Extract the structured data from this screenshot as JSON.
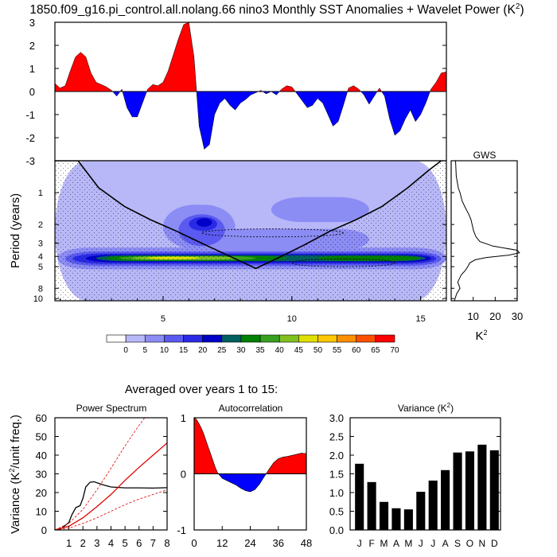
{
  "chart_data": [
    {
      "id": "sst_timeseries",
      "type": "area",
      "title": "1850.f09_g16.pi_control.all.nolang.66 nino3 Monthly SST Anomalies + Wavelet Power (K",
      "title_sup": "2",
      "title_close": ")",
      "xlim": [
        0.8,
        16.0
      ],
      "ylim": [
        -3,
        3
      ],
      "y_ticks": [
        "3",
        "2",
        "1",
        "0",
        "-1",
        "-2",
        "-3"
      ],
      "y_tick_values": [
        3,
        2,
        1,
        0,
        -1,
        -2,
        -3
      ],
      "colors": {
        "positive": "#ff0000",
        "negative": "#0000ff"
      },
      "x": [
        0.8,
        1.0,
        1.2,
        1.4,
        1.6,
        1.8,
        2.0,
        2.2,
        2.4,
        2.6,
        2.8,
        3.0,
        3.2,
        3.4,
        3.6,
        3.8,
        4.0,
        4.2,
        4.4,
        4.6,
        4.8,
        5.0,
        5.2,
        5.4,
        5.6,
        5.8,
        6.0,
        6.2,
        6.4,
        6.6,
        6.8,
        7.0,
        7.2,
        7.4,
        7.6,
        7.8,
        8.0,
        8.2,
        8.4,
        8.6,
        8.8,
        9.0,
        9.2,
        9.4,
        9.6,
        9.8,
        10.0,
        10.2,
        10.4,
        10.6,
        10.8,
        11.0,
        11.2,
        11.4,
        11.6,
        11.8,
        12.0,
        12.2,
        12.4,
        12.6,
        12.8,
        13.0,
        13.2,
        13.4,
        13.6,
        13.8,
        14.0,
        14.2,
        14.4,
        14.6,
        14.8,
        15.0,
        15.2,
        15.4,
        15.6,
        15.8,
        16.0
      ],
      "values": [
        0.35,
        0.15,
        0.25,
        0.9,
        1.5,
        1.7,
        1.5,
        0.8,
        0.4,
        0.3,
        0.2,
        0.05,
        -0.2,
        0.1,
        -0.7,
        -1.1,
        -1.1,
        -0.5,
        0.1,
        0.3,
        0.25,
        0.4,
        0.9,
        1.6,
        2.3,
        2.9,
        3.0,
        1.5,
        -1.5,
        -2.5,
        -2.3,
        -1.0,
        -0.5,
        -0.3,
        -0.6,
        -0.8,
        -0.5,
        -0.35,
        -0.15,
        -0.05,
        0.05,
        -0.1,
        0.0,
        -0.15,
        0.1,
        0.25,
        0.2,
        -0.1,
        -0.4,
        -0.7,
        -0.6,
        -0.3,
        -0.5,
        -1.0,
        -1.5,
        -1.3,
        -0.6,
        0.15,
        0.25,
        0.1,
        -0.15,
        -0.55,
        -0.2,
        0.15,
        -0.2,
        -1.2,
        -1.9,
        -1.7,
        -1.2,
        -0.8,
        -1.3,
        -1.0,
        -0.5,
        0.1,
        0.4,
        0.8,
        0.85
      ]
    },
    {
      "id": "wavelet_power",
      "type": "heatmap",
      "ylabel": "Period (years)",
      "x_ticks": [
        "5",
        "10",
        "15"
      ],
      "x_tick_values": [
        5,
        10,
        15
      ],
      "xlim": [
        0.8,
        16.0
      ],
      "ylim_period": [
        0.5,
        10.5
      ],
      "y_ticks": [
        "1",
        "2",
        "3",
        "4",
        "5",
        "8",
        "10"
      ],
      "y_tick_values": [
        1,
        2,
        3,
        4,
        5,
        8,
        10
      ],
      "significance_contours": [
        {
          "period_level": 2.4,
          "x_range": [
            6.5,
            12.0
          ]
        },
        {
          "period_level": 4.6,
          "x_range": [
            10.0,
            14.0
          ]
        }
      ],
      "cone_of_influence": {
        "x": [
          0.8,
          1.7,
          2.5,
          3.5,
          4.5,
          5.5,
          6.5,
          7.5,
          8.6,
          9.5,
          10.5,
          11.5,
          12.5,
          13.5,
          14.5,
          15.3,
          15.8
        ],
        "period": [
          0.5,
          0.5,
          0.9,
          1.35,
          1.8,
          2.3,
          3.0,
          3.9,
          5.2,
          4.1,
          3.1,
          2.3,
          1.8,
          1.35,
          0.9,
          0.62,
          0.5
        ]
      },
      "colorbar_labels": [
        "0",
        "5",
        "10",
        "15",
        "20",
        "25",
        "30",
        "35",
        "40",
        "45",
        "50",
        "55",
        "60",
        "65",
        "70"
      ],
      "colorbar_colors": [
        "#ffffff",
        "#b8b8f8",
        "#8c8cf5",
        "#5a5af0",
        "#2a2ae6",
        "#0000c8",
        "#006060",
        "#008000",
        "#38a020",
        "#80c020",
        "#e0e000",
        "#ffc800",
        "#ff9000",
        "#ff5000",
        "#ff0000"
      ],
      "contour_levels": [
        {
          "level": 5,
          "color": "#b8b8f8",
          "blobs": [
            [
              0.8,
              16.0,
              0.5,
              10.5
            ]
          ]
        },
        {
          "level": 10,
          "color": "#8c8cf5",
          "blobs": [
            [
              0.9,
              16.0,
              3.3,
              5.3
            ],
            [
              5.0,
              7.8,
              1.3,
              3.4
            ],
            [
              5.5,
              13.0,
              2.2,
              3.5
            ],
            [
              9.2,
              13.0,
              1.1,
              1.9
            ]
          ]
        },
        {
          "level": 15,
          "color": "#5a5af0",
          "blobs": [
            [
              1.2,
              15.8,
              3.6,
              4.9
            ],
            [
              5.6,
              7.4,
              1.6,
              3.2
            ]
          ]
        },
        {
          "level": 20,
          "color": "#2a2ae6",
          "blobs": [
            [
              1.5,
              15.6,
              3.75,
              4.7
            ],
            [
              6.0,
              7.1,
              1.7,
              2.3
            ]
          ]
        },
        {
          "level": 25,
          "color": "#0000c8",
          "blobs": [
            [
              2.0,
              15.4,
              3.85,
              4.55
            ],
            [
              6.3,
              6.9,
              1.75,
              2.1
            ]
          ]
        },
        {
          "level": 30,
          "color": "#006060",
          "blobs": [
            [
              2.4,
              15.2,
              3.9,
              4.45
            ]
          ]
        },
        {
          "level": 35,
          "color": "#008000",
          "blobs": [
            [
              2.8,
              9.8,
              3.95,
              4.4
            ],
            [
              11.0,
              15.0,
              3.95,
              4.4
            ]
          ]
        },
        {
          "level": 40,
          "color": "#38a020",
          "blobs": [
            [
              3.3,
              8.6,
              3.98,
              4.35
            ]
          ]
        },
        {
          "level": 45,
          "color": "#80c020",
          "blobs": [
            [
              3.8,
              7.8,
              4.0,
              4.3
            ]
          ]
        },
        {
          "level": 50,
          "color": "#e0e000",
          "blobs": [
            [
              4.4,
              6.4,
              4.03,
              4.26
            ]
          ]
        }
      ]
    },
    {
      "id": "gws",
      "type": "line",
      "title": "GWS",
      "xlabel": "K",
      "xlabel_sup": "2",
      "xlim": [
        0,
        30
      ],
      "x_ticks": [
        "10",
        "20",
        "30"
      ],
      "x_tick_values": [
        10,
        20,
        30
      ],
      "period": [
        0.5,
        0.7,
        0.9,
        1.0,
        1.2,
        1.4,
        1.6,
        1.8,
        2.0,
        2.3,
        2.6,
        2.9,
        3.2,
        3.5,
        3.7,
        3.9,
        4.1,
        4.3,
        4.6,
        5.0,
        5.4,
        6.0,
        7.0,
        8.0,
        9.0,
        10.5
      ],
      "power": [
        2.0,
        2.3,
        3.2,
        4.0,
        5.0,
        6.5,
        8.0,
        9.0,
        9.5,
        10.2,
        11.2,
        13.0,
        19.0,
        30.0,
        31.0,
        26.0,
        16.0,
        11.0,
        8.5,
        7.5,
        6.5,
        4.5,
        3.0,
        4.0,
        2.5,
        1.5
      ]
    },
    {
      "id": "section_title",
      "type": "table",
      "text": "Averaged over years 1 to 15:"
    },
    {
      "id": "power_spectrum",
      "type": "line",
      "title": "Power Spectrum",
      "ylabel": "Variance (K",
      "ylabel_sup": "2",
      "ylabel_close": "/unit freq.)",
      "xlim": [
        0,
        8
      ],
      "ylim": [
        0,
        60
      ],
      "x_ticks": [
        "1",
        "2",
        "3",
        "4",
        "5",
        "6",
        "7",
        "8"
      ],
      "x_tick_values": [
        1,
        2,
        3,
        4,
        5,
        6,
        7,
        8
      ],
      "y_ticks": [
        "0",
        "10",
        "20",
        "30",
        "40",
        "50",
        "60"
      ],
      "y_tick_values": [
        0,
        10,
        20,
        30,
        40,
        50,
        60
      ],
      "series": [
        {
          "name": "spectrum",
          "color": "#000000",
          "dash": false,
          "x": [
            0.0,
            0.5,
            1.0,
            1.2,
            1.5,
            1.8,
            2.0,
            2.2,
            2.5,
            2.8,
            3.0,
            3.5,
            4.0,
            5.0,
            6.0,
            7.0,
            8.0
          ],
          "y": [
            0.0,
            1.0,
            4.0,
            8.0,
            12.0,
            13.0,
            17.0,
            23.0,
            25.5,
            25.8,
            25.2,
            24.0,
            23.0,
            22.5,
            22.5,
            22.4,
            22.6
          ]
        },
        {
          "name": "red noise",
          "color": "#e00000",
          "dash": false,
          "x": [
            0,
            1,
            2,
            3,
            4,
            5,
            6,
            7,
            8
          ],
          "y": [
            0,
            2.0,
            6.5,
            12.5,
            19.0,
            26.5,
            33.5,
            40.0,
            46.5
          ]
        },
        {
          "name": "upper bound",
          "color": "#e00000",
          "dash": true,
          "x": [
            0,
            1,
            2,
            3,
            4,
            5,
            6,
            7
          ],
          "y": [
            0,
            3.5,
            11.0,
            21.5,
            33.0,
            45.0,
            56.0,
            66.0
          ]
        },
        {
          "name": "lower bound",
          "color": "#e00000",
          "dash": true,
          "x": [
            0,
            1,
            2,
            3,
            4,
            5,
            6,
            7,
            8
          ],
          "y": [
            0,
            1.0,
            3.5,
            6.5,
            10.0,
            13.5,
            16.5,
            19.0,
            21.5
          ]
        }
      ]
    },
    {
      "id": "autocorrelation",
      "type": "area",
      "title": "Autocorrelation",
      "xlim": [
        0,
        48
      ],
      "ylim": [
        -1,
        1
      ],
      "x_ticks": [
        "0",
        "12",
        "24",
        "36",
        "48"
      ],
      "x_tick_values": [
        0,
        12,
        24,
        36,
        48
      ],
      "y_ticks": [
        "1",
        "0",
        "-1"
      ],
      "y_tick_values": [
        1,
        0,
        -1
      ],
      "colors": {
        "positive": "#ff0000",
        "negative": "#0000ff"
      },
      "x": [
        0,
        1,
        2,
        3,
        4,
        5,
        6,
        7,
        8,
        9,
        10,
        12,
        14,
        16,
        18,
        20,
        22,
        24,
        26,
        28,
        30,
        32,
        34,
        36,
        38,
        40,
        42,
        44,
        46,
        48
      ],
      "values": [
        1.0,
        0.97,
        0.9,
        0.82,
        0.72,
        0.6,
        0.48,
        0.36,
        0.24,
        0.12,
        0.02,
        -0.08,
        -0.12,
        -0.16,
        -0.2,
        -0.26,
        -0.3,
        -0.32,
        -0.28,
        -0.18,
        -0.05,
        0.08,
        0.2,
        0.27,
        0.3,
        0.31,
        0.33,
        0.35,
        0.37,
        0.36
      ]
    },
    {
      "id": "monthly_variance",
      "type": "bar",
      "title": "Variance (K",
      "title_sup": "2",
      "title_close": ")",
      "categories": [
        "J",
        "F",
        "M",
        "A",
        "M",
        "J",
        "J",
        "A",
        "S",
        "O",
        "N",
        "D"
      ],
      "values": [
        1.77,
        1.28,
        0.75,
        0.58,
        0.55,
        1.02,
        1.32,
        1.6,
        2.07,
        2.1,
        2.28,
        2.13
      ],
      "ylim": [
        0,
        3.0
      ],
      "y_ticks": [
        "0.0",
        "0.5",
        "1.0",
        "1.5",
        "2.0",
        "2.5",
        "3.0"
      ],
      "y_tick_values": [
        0,
        0.5,
        1.0,
        1.5,
        2.0,
        2.5,
        3.0
      ],
      "color": "#000000"
    }
  ]
}
